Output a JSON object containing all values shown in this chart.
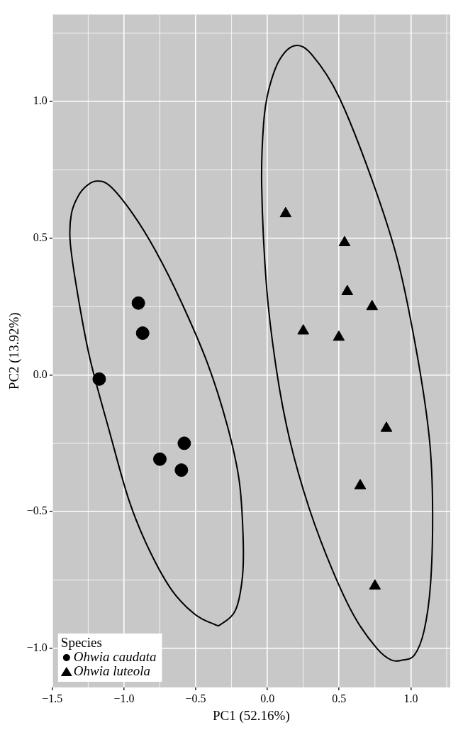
{
  "chart_data": {
    "type": "scatter",
    "xlabel": "PC1 (52.16%)",
    "ylabel": "PC2 (13.92%)",
    "legend_title": "Species",
    "legend": "bottom left",
    "grid": true,
    "xlim": [
      -1.5,
      1.275
    ],
    "ylim": [
      -1.143,
      1.318
    ],
    "xticks": [
      {
        "value": -1.5,
        "label": "−1.5"
      },
      {
        "value": -1,
        "label": "−1.0"
      },
      {
        "value": -0.5,
        "label": "−0.5"
      },
      {
        "value": 0,
        "label": "0.0"
      },
      {
        "value": 0.5,
        "label": "0.5"
      },
      {
        "value": 1,
        "label": "1.0"
      }
    ],
    "yticks": [
      {
        "value": -1,
        "label": "−1.0"
      },
      {
        "value": -0.5,
        "label": "−0.5"
      },
      {
        "value": 0,
        "label": "0.0"
      },
      {
        "value": 0.5,
        "label": "0.5"
      },
      {
        "value": 1,
        "label": "1.0"
      }
    ],
    "series": [
      {
        "name": "Ohwia caudata",
        "type": "scatter",
        "marker": "circle",
        "color": "#000000",
        "x": [
          -0.9,
          -0.87,
          -1.173,
          -0.58,
          -0.75,
          -0.6
        ],
        "values": [
          0.263,
          0.153,
          -0.015,
          -0.25,
          -0.308,
          -0.348
        ]
      },
      {
        "name": "Ohwia luteola",
        "type": "scatter",
        "marker": "triangle",
        "color": "#000000",
        "x": [
          0.127,
          0.538,
          0.557,
          0.73,
          0.25,
          0.498,
          0.83,
          0.647,
          0.75
        ],
        "values": [
          0.59,
          0.484,
          0.305,
          0.25,
          0.161,
          0.138,
          -0.195,
          -0.405,
          -0.772
        ]
      }
    ]
  }
}
